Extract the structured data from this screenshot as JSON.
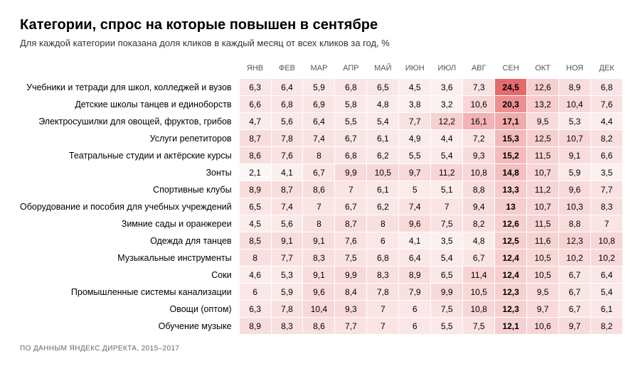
{
  "title": "Категории, спрос на которые повышен в сентябре",
  "subtitle": "Для каждой категории показана доля кликов в каждый месяц от всех кликов за год, %",
  "footer": "ПО ДАННЫМ ЯНДЕКС.ДИРЕКТА, 2015–2017",
  "heatmap": {
    "type": "heatmap",
    "months": [
      "ЯНВ",
      "ФЕВ",
      "МАР",
      "АПР",
      "МАЙ",
      "ИЮН",
      "ИЮЛ",
      "АВГ",
      "СЕН",
      "ОКТ",
      "НОЯ",
      "ДЕК"
    ],
    "highlight_column_index": 8,
    "scale_min": 2.1,
    "scale_max": 24.5,
    "color_low": "#fdf6f6",
    "color_mid": "#f6cccd",
    "color_high": "#e46a6c",
    "background_color": "#ffffff",
    "cell_border_color": "#ffffff",
    "title_fontsize": 20,
    "subtitle_fontsize": 13,
    "header_fontsize": 11,
    "cell_fontsize": 12,
    "rows": [
      {
        "label": "Учебники и тетради для школ, колледжей и вузов",
        "values": [
          6.3,
          6.4,
          5.9,
          6.8,
          6.5,
          4.5,
          3.6,
          7.3,
          24.5,
          12.6,
          8.9,
          6.8
        ]
      },
      {
        "label": "Детские школы танцев и единоборств",
        "values": [
          6.6,
          6.8,
          6.9,
          5.8,
          4.8,
          3.8,
          3.2,
          10.6,
          20.3,
          13.2,
          10.4,
          7.6
        ]
      },
      {
        "label": "Электросушилки для овощей, фруктов, грибов",
        "values": [
          4.7,
          5.6,
          6.4,
          5.5,
          5.4,
          7.7,
          12.2,
          16.1,
          17.1,
          9.5,
          5.3,
          4.4
        ]
      },
      {
        "label": "Услуги репетиторов",
        "values": [
          8.7,
          7.8,
          7.4,
          6.7,
          6.1,
          4.9,
          4.4,
          7.2,
          15.3,
          12.5,
          10.7,
          8.2
        ]
      },
      {
        "label": "Театральные студии и актёрские курсы",
        "values": [
          8.6,
          7.6,
          8,
          6.8,
          6.2,
          5.5,
          5.4,
          9.3,
          15.2,
          11.5,
          9.1,
          6.6
        ]
      },
      {
        "label": "Зонты",
        "values": [
          2.1,
          4.1,
          6.7,
          9.9,
          10.5,
          9.7,
          11.2,
          10.8,
          14.8,
          10.7,
          5.9,
          3.5
        ]
      },
      {
        "label": "Спортивные клубы",
        "values": [
          8.9,
          8.7,
          8.6,
          7,
          6.1,
          5,
          5.1,
          8.8,
          13.3,
          11.2,
          9.6,
          7.7
        ]
      },
      {
        "label": "Оборудование и пособия для учебных учреждений",
        "values": [
          6.5,
          7.4,
          7,
          6.7,
          6.2,
          7.4,
          7,
          9.4,
          13,
          10.7,
          10.3,
          8.3
        ]
      },
      {
        "label": "Зимние сады и оранжереи",
        "values": [
          4.5,
          5.6,
          8,
          8.7,
          8,
          9.6,
          7.5,
          8.2,
          12.6,
          11.5,
          8.8,
          7
        ]
      },
      {
        "label": "Одежда для танцев",
        "values": [
          8.5,
          9.1,
          9.1,
          7.6,
          6,
          4.1,
          3.5,
          4.8,
          12.5,
          11.6,
          12.3,
          10.8
        ]
      },
      {
        "label": "Музыкальные инструменты",
        "values": [
          8,
          7.7,
          8.3,
          7.5,
          6.8,
          6.4,
          5.4,
          6.7,
          12.4,
          10.5,
          10.2,
          10.2
        ]
      },
      {
        "label": "Соки",
        "values": [
          4.6,
          5.3,
          9.1,
          9.9,
          8.3,
          8.9,
          6.5,
          11.4,
          12.4,
          10.5,
          6.7,
          6.4
        ]
      },
      {
        "label": "Промышленные системы канализации",
        "values": [
          6,
          5.9,
          9.6,
          8.4,
          7.8,
          7.9,
          9.9,
          10.5,
          12.3,
          9.5,
          6.7,
          5.4
        ]
      },
      {
        "label": "Овощи (оптом)",
        "values": [
          6.3,
          7.8,
          10.4,
          9.3,
          7,
          6,
          7.5,
          10.8,
          12.3,
          9.7,
          6.7,
          6.1
        ]
      },
      {
        "label": "Обучение музыке",
        "values": [
          8.9,
          8.3,
          8.6,
          7.7,
          7,
          6,
          5.5,
          7.5,
          12.1,
          10.6,
          9.7,
          8.2
        ]
      }
    ]
  }
}
